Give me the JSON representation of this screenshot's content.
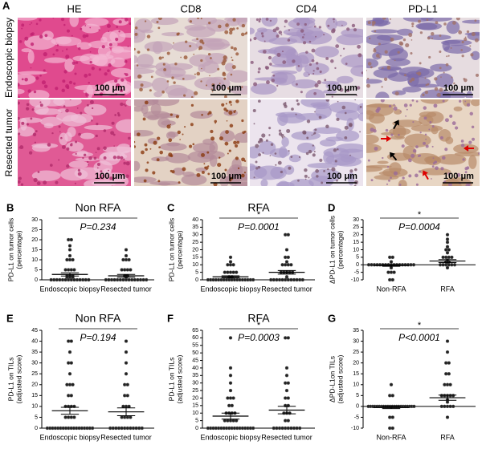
{
  "panel_a": {
    "label": "A",
    "columns": [
      "HE",
      "CD8",
      "CD4",
      "PD-L1"
    ],
    "rows": [
      "Endoscopic biopsy",
      "Resected tumor"
    ],
    "scale_bar": "100 μm"
  },
  "chart_data": [
    {
      "type": "dotplot",
      "panel": "B",
      "title": "Non RFA",
      "p_text": "P=0.234",
      "ylabel": [
        "PD-L1 on tumor cells",
        "(percentage)"
      ],
      "categories": [
        "Endoscopic biopsy",
        "Resected tumor"
      ],
      "groups": [
        [
          20,
          20,
          17,
          15,
          12,
          10,
          10,
          10,
          5,
          5,
          5,
          5,
          2,
          2,
          2,
          1,
          1,
          1,
          0,
          0,
          0,
          0,
          0,
          0,
          0,
          0,
          0,
          0,
          0,
          0,
          0,
          0
        ],
        [
          15,
          12,
          10,
          10,
          10,
          5,
          5,
          5,
          5,
          2,
          2,
          1,
          0,
          0,
          0,
          0,
          0,
          0,
          0,
          0,
          0,
          0,
          0,
          0,
          0,
          0,
          0
        ]
      ],
      "means": [
        2.7,
        2.0
      ],
      "sems": [
        0.8,
        0.7
      ],
      "ylim": [
        0,
        30
      ],
      "yticks": [
        0,
        5,
        10,
        15,
        20,
        25,
        30
      ]
    },
    {
      "type": "dotplot",
      "panel": "C",
      "title": "RFA",
      "significance": "*",
      "p_text": "P=0.0001",
      "ylabel": [
        "PD-L1 on tumor cells",
        "(percentage)"
      ],
      "categories": [
        "Endoscopic biopsy",
        "Resected tumor"
      ],
      "groups": [
        [
          15,
          12,
          10,
          10,
          10,
          5,
          5,
          5,
          5,
          5,
          2,
          2,
          1,
          1,
          0,
          0,
          0,
          0,
          0,
          0,
          0,
          0,
          0,
          0,
          0,
          0,
          0,
          0,
          0,
          0,
          0,
          0
        ],
        [
          30,
          30,
          20,
          15,
          15,
          12,
          10,
          10,
          10,
          10,
          5,
          5,
          5,
          5,
          5,
          2,
          1,
          0,
          0,
          0,
          0,
          0,
          0,
          0,
          0,
          0,
          0,
          0,
          0
        ]
      ],
      "means": [
        2.0,
        5.0
      ],
      "sems": [
        0.7,
        1.2
      ],
      "ylim": [
        0,
        40
      ],
      "yticks": [
        0,
        5,
        10,
        15,
        20,
        25,
        30,
        35,
        40
      ]
    },
    {
      "type": "dotplot",
      "panel": "D",
      "significance": "*",
      "p_text": "P=0.0004",
      "ylabel": [
        "ΔPD-L1 on tumor cells",
        "(percentage)"
      ],
      "categories": [
        "Non-RFA",
        "RFA"
      ],
      "groups": [
        [
          5,
          5,
          2,
          0,
          0,
          0,
          0,
          0,
          0,
          0,
          0,
          0,
          0,
          0,
          0,
          0,
          0,
          0,
          0,
          0,
          -2,
          -5,
          -5,
          -5,
          -10,
          -10
        ],
        [
          20,
          17,
          15,
          12,
          10,
          10,
          8,
          5,
          5,
          5,
          5,
          3,
          2,
          2,
          1,
          0,
          0,
          0,
          0,
          0,
          0,
          -2
        ]
      ],
      "means": [
        -0.5,
        2.5
      ],
      "sems": [
        0.5,
        1.0
      ],
      "ylim": [
        -10,
        30
      ],
      "yticks": [
        -10,
        -5,
        0,
        5,
        10,
        15,
        20,
        25,
        30
      ]
    },
    {
      "type": "dotplot",
      "panel": "E",
      "title": "Non RFA",
      "p_text": "P=0.194",
      "ylabel": [
        "PD-L1 on TILs",
        "(adjusted score)"
      ],
      "categories": [
        "Endoscopic biopsy",
        "Resected tumor"
      ],
      "groups": [
        [
          40,
          40,
          35,
          30,
          30,
          25,
          20,
          20,
          20,
          15,
          15,
          10,
          10,
          10,
          10,
          5,
          5,
          5,
          5,
          0,
          0,
          0,
          0,
          0,
          0,
          0,
          0,
          0,
          0,
          0,
          0,
          0,
          0,
          0,
          0,
          0,
          0
        ],
        [
          40,
          35,
          30,
          25,
          20,
          20,
          15,
          15,
          10,
          10,
          10,
          5,
          5,
          5,
          5,
          0,
          0,
          0,
          0,
          0,
          0,
          0,
          0,
          0,
          0,
          0,
          0
        ]
      ],
      "means": [
        8,
        7.5
      ],
      "sems": [
        1.6,
        1.8
      ],
      "ylim": [
        0,
        45
      ],
      "yticks": [
        0,
        5,
        10,
        15,
        20,
        25,
        30,
        35,
        40,
        45
      ]
    },
    {
      "type": "dotplot",
      "panel": "F",
      "title": "RFA",
      "significance": "*",
      "p_text": "P=0.0003",
      "ylabel": [
        "PD-L1 on TILs",
        "(adjusted score)"
      ],
      "categories": [
        "Endoscopic biopsy",
        "Resected tumor"
      ],
      "groups": [
        [
          60,
          40,
          35,
          30,
          25,
          20,
          20,
          20,
          15,
          15,
          10,
          10,
          10,
          10,
          5,
          5,
          5,
          5,
          5,
          0,
          0,
          0,
          0,
          0,
          0,
          0,
          0,
          0,
          0,
          0,
          0,
          0,
          0,
          0,
          0,
          0,
          0
        ],
        [
          60,
          60,
          40,
          35,
          30,
          30,
          25,
          20,
          20,
          15,
          15,
          10,
          10,
          10,
          5,
          5,
          0,
          0,
          0,
          0,
          0,
          0,
          0,
          0,
          0,
          0
        ]
      ],
      "means": [
        8,
        12
      ],
      "sems": [
        2,
        2.5
      ],
      "ylim": [
        0,
        65
      ],
      "yticks": [
        0,
        5,
        10,
        15,
        20,
        25,
        30,
        35,
        40,
        45,
        50,
        55,
        60,
        65
      ]
    },
    {
      "type": "dotplot",
      "panel": "G",
      "significance": "*",
      "p_text": "P<0.0001",
      "ylabel": [
        "ΔPD-L1on TILs",
        "(adjusted score)"
      ],
      "categories": [
        "Non-RFA",
        "RFA"
      ],
      "groups": [
        [
          10,
          5,
          5,
          0,
          0,
          0,
          0,
          0,
          0,
          0,
          0,
          0,
          0,
          0,
          0,
          0,
          0,
          0,
          0,
          0,
          0,
          0,
          0,
          0,
          0,
          -5,
          -5,
          -10,
          -10
        ],
        [
          30,
          25,
          20,
          20,
          15,
          15,
          10,
          10,
          10,
          5,
          5,
          5,
          5,
          5,
          3,
          2,
          0,
          0,
          0,
          0,
          0,
          -5
        ]
      ],
      "means": [
        -0.5,
        4
      ],
      "sems": [
        0.5,
        1.2
      ],
      "ylim": [
        -10,
        35
      ],
      "yticks": [
        -10,
        -5,
        0,
        5,
        10,
        15,
        20,
        25,
        30,
        35
      ]
    }
  ]
}
